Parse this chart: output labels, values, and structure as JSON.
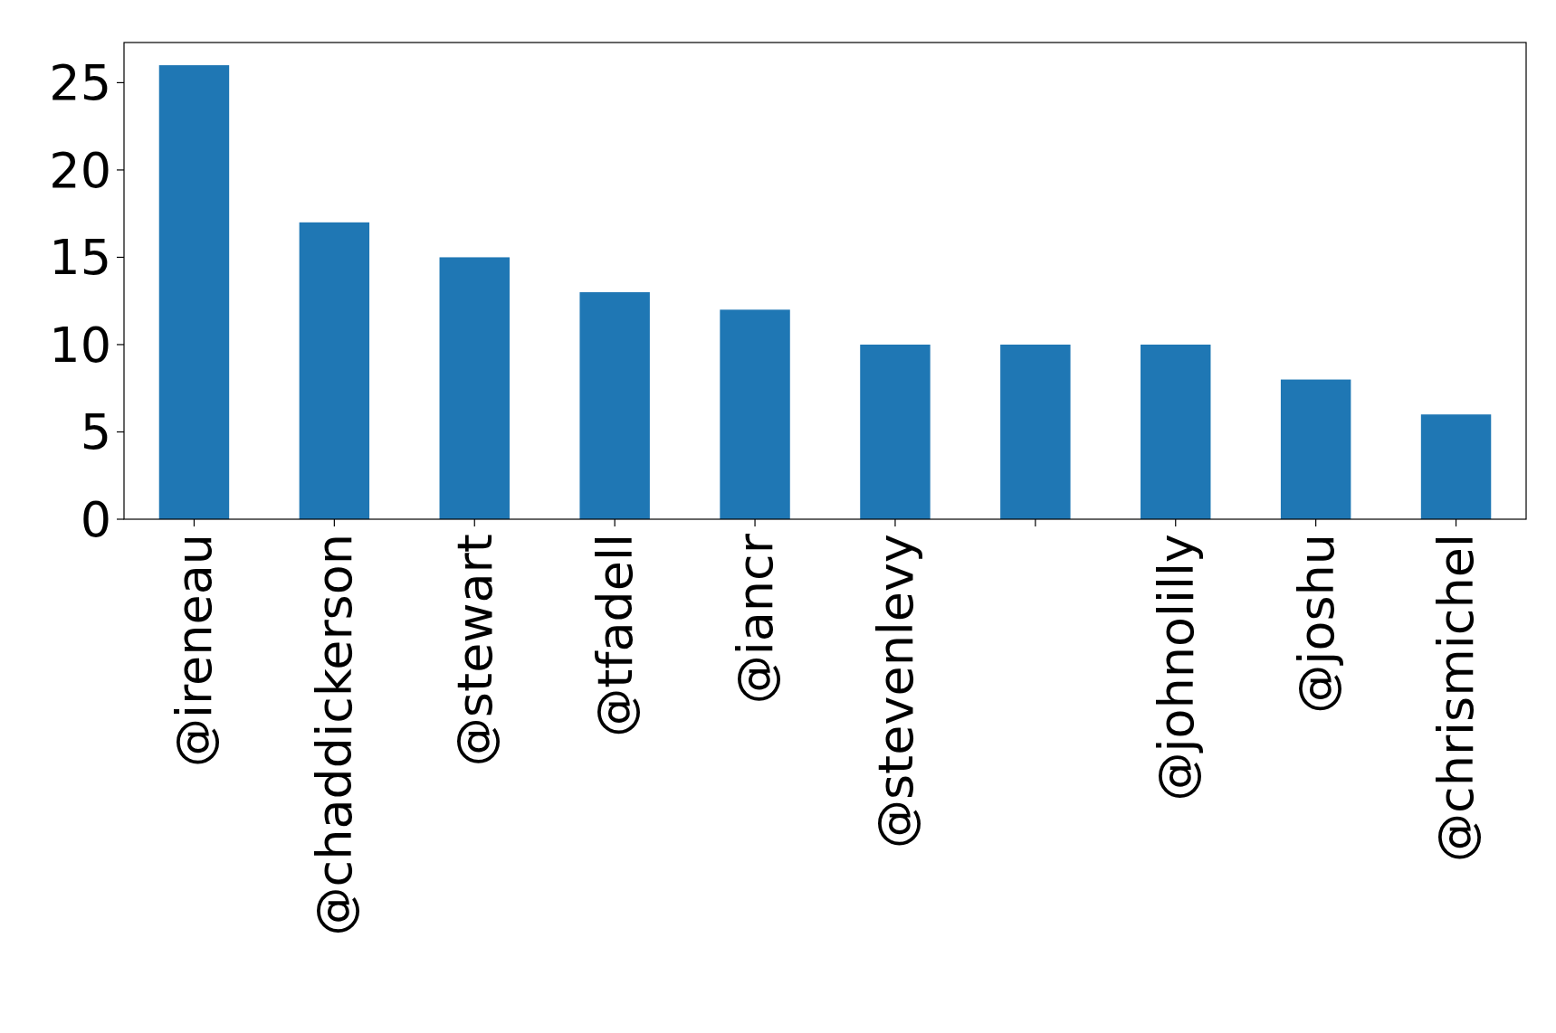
{
  "chart_data": {
    "type": "bar",
    "categories": [
      "@ireneau",
      "@chaddickerson",
      "@stewart",
      "@tfadell",
      "@iancr",
      "@stevenlevy",
      null,
      "@johnolilly",
      "@joshu",
      "@chrismichel"
    ],
    "values": [
      26,
      17,
      15,
      13,
      12,
      10,
      10,
      10,
      8,
      6
    ],
    "color": "#1f77b4",
    "ylim": [
      0,
      27.3
    ],
    "yticks": [
      0,
      5,
      10,
      15,
      20,
      25
    ],
    "grid": false
  }
}
